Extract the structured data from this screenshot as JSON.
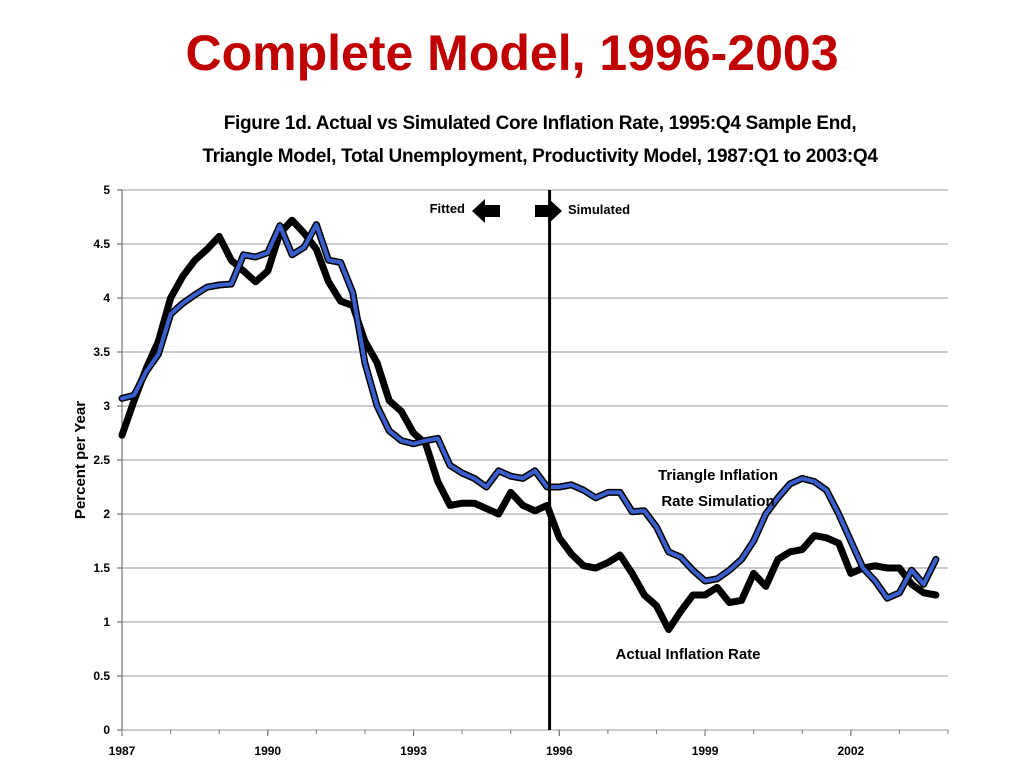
{
  "slide": {
    "title": "Complete Model, 1996-2003"
  },
  "colors": {
    "title": "#c00000",
    "actual": "#000000",
    "simulated": "#3a5fcd",
    "grid": "#999999"
  },
  "chart_data": {
    "type": "line",
    "title_line1": "Figure 1d. Actual vs Simulated Core Inflation Rate, 1995:Q4 Sample End,",
    "title_line2": "Triangle Model, Total Unemployment, Productivity Model, 1987:Q1 to 2003:Q4",
    "ylabel": "Percent per Year",
    "xlabel": "",
    "xlim": [
      1987,
      2004.0
    ],
    "ylim": [
      0,
      5
    ],
    "yticks": [
      0,
      0.5,
      1,
      1.5,
      2,
      2.5,
      3,
      3.5,
      4,
      4.5,
      5
    ],
    "ytick_labels": [
      "0",
      "0.5",
      "1",
      "1.5",
      "2",
      "2.5",
      "3",
      "3.5",
      "4",
      "4.5",
      "5"
    ],
    "xticks": [
      1987,
      1990,
      1993,
      1996,
      1999,
      2002
    ],
    "xtick_labels": [
      "1987",
      "1990",
      "1993",
      "1996",
      "1999",
      "2002"
    ],
    "grid": true,
    "sample_end_x": 1995.8,
    "annotations": {
      "fitted": "Fitted",
      "simulated": "Simulated",
      "sim_label_line1": "Triangle Inflation",
      "sim_label_line2": "Rate Simulation",
      "actual_label": "Actual Inflation Rate"
    },
    "series": [
      {
        "name": "Actual Inflation Rate",
        "x": [
          1987.0,
          1987.25,
          1987.5,
          1987.75,
          1988.0,
          1988.25,
          1988.5,
          1988.75,
          1989.0,
          1989.25,
          1989.5,
          1989.75,
          1990.0,
          1990.25,
          1990.5,
          1990.75,
          1991.0,
          1991.25,
          1991.5,
          1991.75,
          1992.0,
          1992.25,
          1992.5,
          1992.75,
          1993.0,
          1993.25,
          1993.5,
          1993.75,
          1994.0,
          1994.25,
          1994.5,
          1994.75,
          1995.0,
          1995.25,
          1995.5,
          1995.75,
          1996.0,
          1996.25,
          1996.5,
          1996.75,
          1997.0,
          1997.25,
          1997.5,
          1997.75,
          1998.0,
          1998.25,
          1998.5,
          1998.75,
          1999.0,
          1999.25,
          1999.5,
          1999.75,
          2000.0,
          2000.25,
          2000.5,
          2000.75,
          2001.0,
          2001.25,
          2001.5,
          2001.75,
          2002.0,
          2002.25,
          2002.5,
          2002.75,
          2003.0,
          2003.25,
          2003.5,
          2003.75
        ],
        "values": [
          2.73,
          3.05,
          3.35,
          3.6,
          4.0,
          4.2,
          4.35,
          4.45,
          4.57,
          4.35,
          4.25,
          4.15,
          4.25,
          4.6,
          4.72,
          4.6,
          4.45,
          4.15,
          3.97,
          3.93,
          3.6,
          3.4,
          3.05,
          2.95,
          2.75,
          2.65,
          2.3,
          2.08,
          2.1,
          2.1,
          2.05,
          2.0,
          2.2,
          2.08,
          2.03,
          2.08,
          1.78,
          1.63,
          1.52,
          1.5,
          1.55,
          1.62,
          1.45,
          1.25,
          1.15,
          0.93,
          1.1,
          1.25,
          1.25,
          1.32,
          1.18,
          1.2,
          1.45,
          1.33,
          1.58,
          1.65,
          1.67,
          1.8,
          1.78,
          1.73,
          1.45,
          1.5,
          1.52,
          1.5,
          1.5,
          1.35,
          1.27,
          1.25
        ],
        "color": "#000000"
      },
      {
        "name": "Triangle Inflation Rate Simulation",
        "x": [
          1987.0,
          1987.25,
          1987.5,
          1987.75,
          1988.0,
          1988.25,
          1988.5,
          1988.75,
          1989.0,
          1989.25,
          1989.5,
          1989.75,
          1990.0,
          1990.25,
          1990.5,
          1990.75,
          1991.0,
          1991.25,
          1991.5,
          1991.75,
          1992.0,
          1992.25,
          1992.5,
          1992.75,
          1993.0,
          1993.25,
          1993.5,
          1993.75,
          1994.0,
          1994.25,
          1994.5,
          1994.75,
          1995.0,
          1995.25,
          1995.5,
          1995.75,
          1996.0,
          1996.25,
          1996.5,
          1996.75,
          1997.0,
          1997.25,
          1997.5,
          1997.75,
          1998.0,
          1998.25,
          1998.5,
          1998.75,
          1999.0,
          1999.25,
          1999.5,
          1999.75,
          2000.0,
          2000.25,
          2000.5,
          2000.75,
          2001.0,
          2001.25,
          2001.5,
          2001.75,
          2002.0,
          2002.25,
          2002.5,
          2002.75,
          2003.0,
          2003.25,
          2003.5,
          2003.75
        ],
        "values": [
          3.07,
          3.1,
          3.32,
          3.48,
          3.85,
          3.95,
          4.03,
          4.1,
          4.12,
          4.13,
          4.4,
          4.38,
          4.42,
          4.67,
          4.4,
          4.47,
          4.68,
          4.35,
          4.33,
          4.05,
          3.4,
          3.0,
          2.77,
          2.68,
          2.65,
          2.68,
          2.7,
          2.45,
          2.38,
          2.33,
          2.25,
          2.4,
          2.35,
          2.33,
          2.4,
          2.25,
          2.25,
          2.27,
          2.22,
          2.15,
          2.2,
          2.2,
          2.02,
          2.03,
          1.88,
          1.65,
          1.6,
          1.48,
          1.38,
          1.4,
          1.48,
          1.58,
          1.75,
          2.0,
          2.15,
          2.28,
          2.33,
          2.3,
          2.22,
          2.0,
          1.75,
          1.5,
          1.38,
          1.22,
          1.27,
          1.48,
          1.35,
          1.58
        ],
        "color": "#3a5fcd"
      }
    ]
  }
}
